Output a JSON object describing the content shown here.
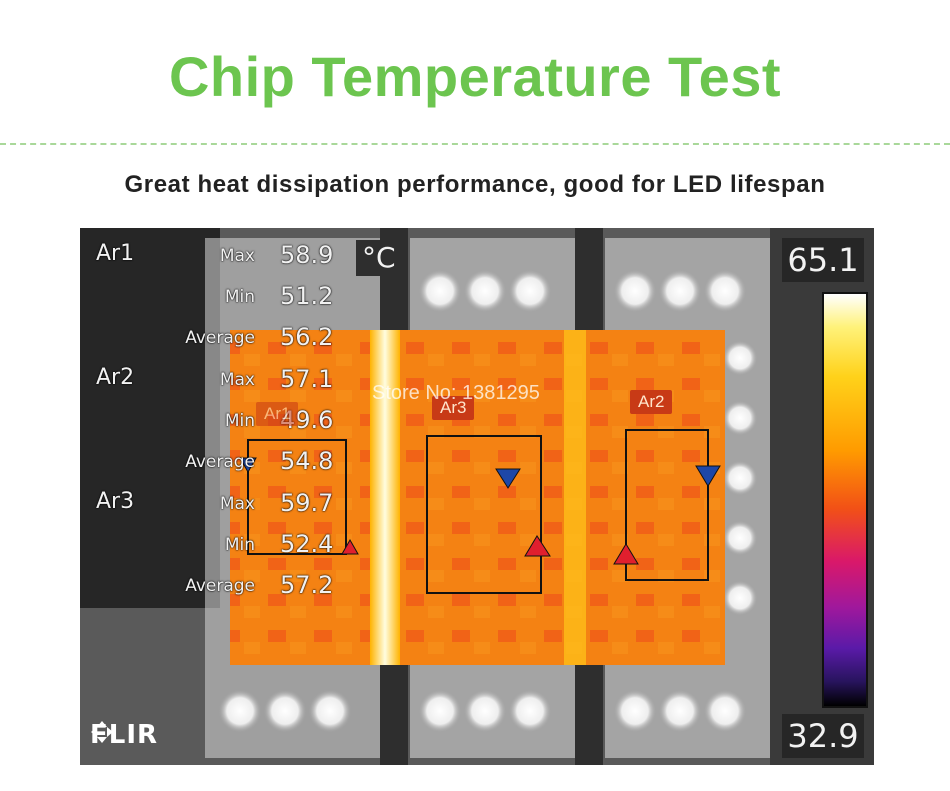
{
  "header": {
    "title": "Chip Temperature Test",
    "subtitle": "Great heat dissipation performance, good for LED lifespan"
  },
  "thermal_image": {
    "unit": "°C",
    "scale": {
      "max": "65.1",
      "min": "32.9"
    },
    "measurements": [
      {
        "area": "Ar1",
        "max_label": "Max",
        "max": "58.9",
        "min_label": "Min",
        "min": "51.2",
        "avg_label": "Average",
        "avg": "56.2"
      },
      {
        "area": "Ar2",
        "max_label": "Max",
        "max": "57.1",
        "min_label": "Min",
        "min": "49.6",
        "avg_label": "Average",
        "avg": "54.8"
      },
      {
        "area": "Ar3",
        "max_label": "Max",
        "max": "59.7",
        "min_label": "Min",
        "min": "52.4",
        "avg_label": "Average",
        "avg": "57.2"
      }
    ],
    "region_tags": {
      "ar1": "Ar1",
      "ar3": "Ar3",
      "ar2": "Ar2"
    },
    "watermark": "Store No: 1381295",
    "logo": "FLIR"
  },
  "colors": {
    "title": "#6cc54f",
    "hot": "#f57a10",
    "marker_max": "#e01f2e",
    "marker_min": "#1d47a8"
  }
}
